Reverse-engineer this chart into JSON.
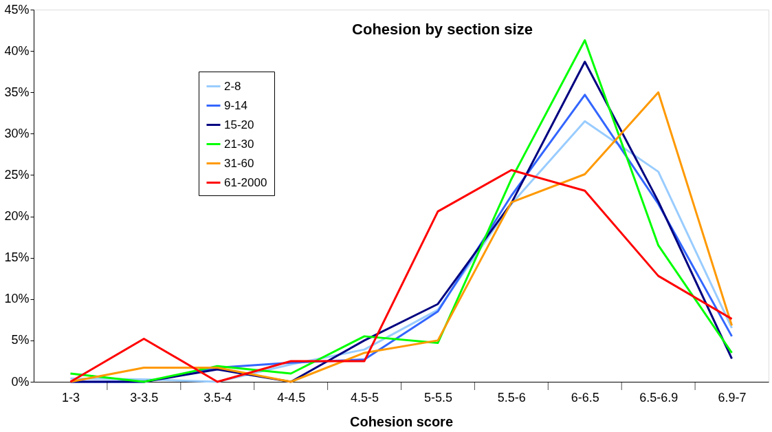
{
  "chart_data": {
    "type": "line",
    "title": "Cohesion by section size",
    "xlabel": "Cohesion score",
    "categories": [
      "1-3",
      "3-3.5",
      "3.5-4",
      "4-4.5",
      "4.5-5",
      "5-5.5",
      "5.5-6",
      "6-6.5",
      "6.5-6.9",
      "6.9-7"
    ],
    "series": [
      {
        "name": "2-8",
        "color": "#99ccff",
        "values": [
          0.4,
          0.3,
          0,
          2.1,
          3.9,
          8.7,
          21.5,
          31.5,
          25.4,
          6.5
        ]
      },
      {
        "name": "9-14",
        "color": "#3366ff",
        "values": [
          0,
          0,
          1.7,
          2.3,
          2.7,
          8.5,
          22.5,
          34.7,
          21.5,
          5.5
        ]
      },
      {
        "name": "15-20",
        "color": "#000080",
        "values": [
          0,
          0,
          1.5,
          0,
          5.0,
          9.4,
          21.6,
          38.7,
          21.8,
          2.8
        ]
      },
      {
        "name": "21-30",
        "color": "#00ff00",
        "values": [
          1.0,
          0,
          1.9,
          1.0,
          5.5,
          4.7,
          24.5,
          41.3,
          16.5,
          3.5
        ]
      },
      {
        "name": "31-60",
        "color": "#ff9900",
        "values": [
          0,
          1.7,
          1.7,
          0,
          3.5,
          5.0,
          21.7,
          25.1,
          35.0,
          6.8
        ]
      },
      {
        "name": "61-2000",
        "color": "#ff0000",
        "values": [
          0,
          5.2,
          0,
          2.5,
          2.5,
          20.6,
          25.6,
          23.1,
          12.8,
          7.6
        ]
      }
    ],
    "ylim": [
      0,
      45
    ],
    "yticks": [
      {
        "value": 0,
        "label": "0%"
      },
      {
        "value": 5,
        "label": "5%"
      },
      {
        "value": 10,
        "label": "10%"
      },
      {
        "value": 15,
        "label": "15%"
      },
      {
        "value": 20,
        "label": "20%"
      },
      {
        "value": 25,
        "label": "25%"
      },
      {
        "value": 30,
        "label": "30%"
      },
      {
        "value": 35,
        "label": "35%"
      },
      {
        "value": 40,
        "label": "40%"
      },
      {
        "value": 45,
        "label": "45%"
      }
    ],
    "grid": false,
    "legend": "top left",
    "marker": "none",
    "line_style": "solid"
  }
}
